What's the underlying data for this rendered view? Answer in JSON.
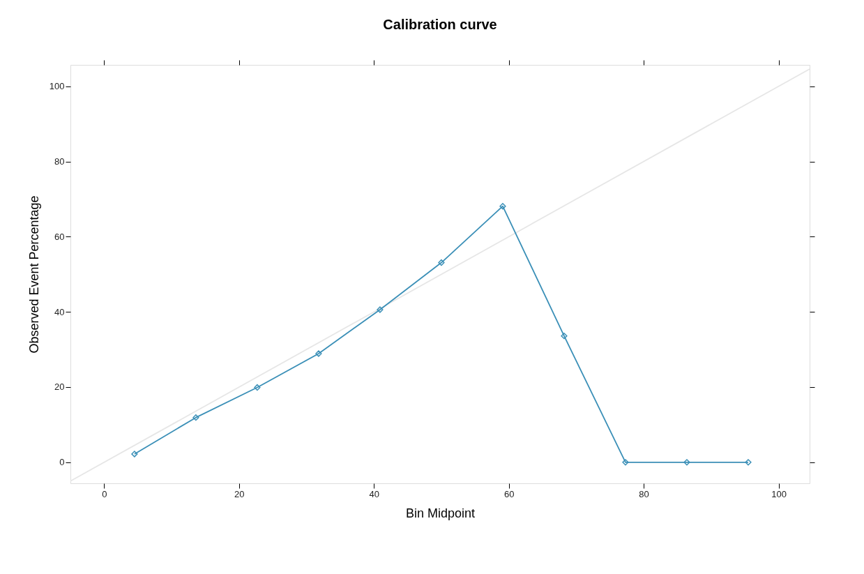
{
  "chart_data": {
    "type": "line",
    "title": "Calibration curve",
    "xlabel": "Bin Midpoint",
    "ylabel": "Observed Event Percentage",
    "x": [
      4.5,
      13.6,
      22.7,
      31.8,
      40.9,
      50.0,
      59.1,
      68.2,
      77.3,
      86.4,
      95.5
    ],
    "series": [
      {
        "color": "#3a8fb7",
        "values": [
          2.2,
          11.9,
          19.9,
          28.9,
          40.6,
          53.1,
          68.1,
          33.6,
          0,
          0,
          0
        ],
        "marker": "diamond"
      },
      {
        "type": "line",
        "color": "#e6e6e6",
        "x": [
          -5,
          104.6
        ],
        "values": [
          -5,
          104.6
        ],
        "marker": "none"
      }
    ],
    "xlim": [
      -5,
      104.6
    ],
    "ylim": [
      -5.6,
      105.7
    ],
    "xticks": [
      0,
      20,
      40,
      60,
      80,
      100
    ],
    "yticks": [
      0,
      20,
      40,
      60,
      80,
      100
    ],
    "grid": false,
    "line_style": "solid"
  }
}
